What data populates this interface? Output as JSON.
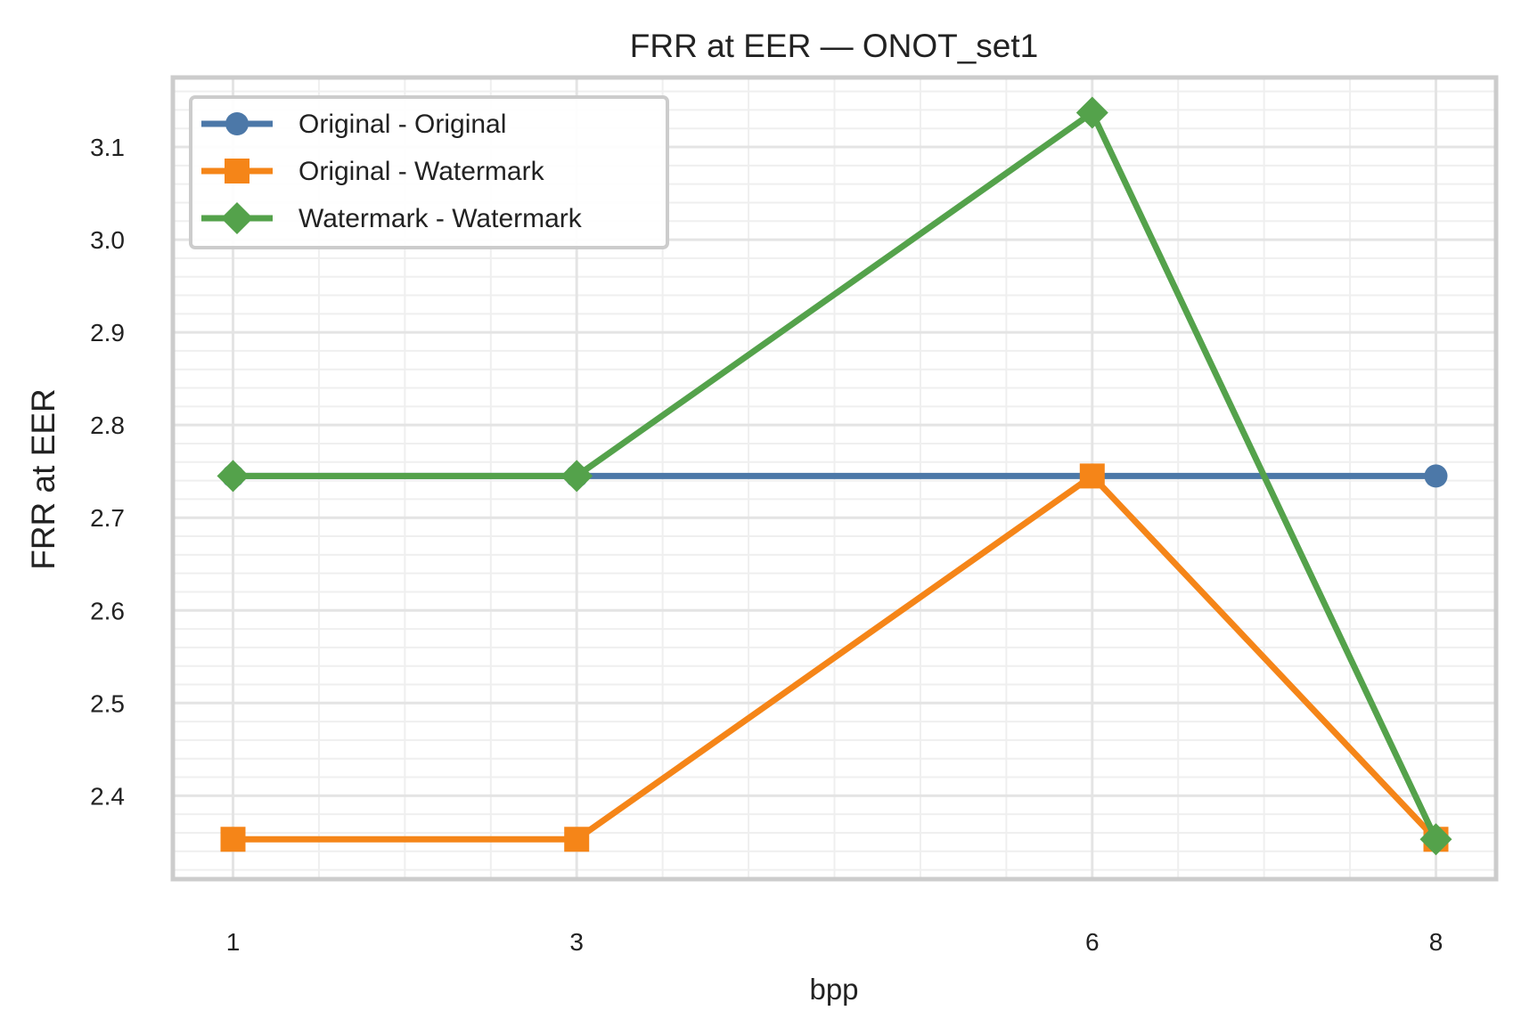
{
  "chart_data": {
    "type": "line",
    "title": "FRR at EER — ONOT_set1",
    "xlabel": "bpp",
    "ylabel": "FRR at EER",
    "x": [
      1,
      3,
      6,
      8
    ],
    "x_tick_labels": [
      "1",
      "3",
      "6",
      "8"
    ],
    "xlim": [
      0.65,
      8.35
    ],
    "ylim": [
      2.31,
      3.175
    ],
    "y_ticks": [
      2.4,
      2.5,
      2.6,
      2.7,
      2.8,
      2.9,
      3.0,
      3.1
    ],
    "y_tick_labels": [
      "2.4",
      "2.5",
      "2.6",
      "2.7",
      "2.8",
      "2.9",
      "3.0",
      "3.1"
    ],
    "grid": true,
    "legend_position": "top-left",
    "series": [
      {
        "name": "Original - Original",
        "values": [
          2.745,
          2.745,
          2.745,
          2.745
        ],
        "color": "#4c78a8",
        "marker": "circle"
      },
      {
        "name": "Original - Watermark",
        "values": [
          2.353,
          2.353,
          2.745,
          2.353
        ],
        "color": "#f58518",
        "marker": "square"
      },
      {
        "name": "Watermark - Watermark",
        "values": [
          2.745,
          2.745,
          3.137,
          2.353
        ],
        "color": "#54a24b",
        "marker": "diamond"
      }
    ]
  }
}
